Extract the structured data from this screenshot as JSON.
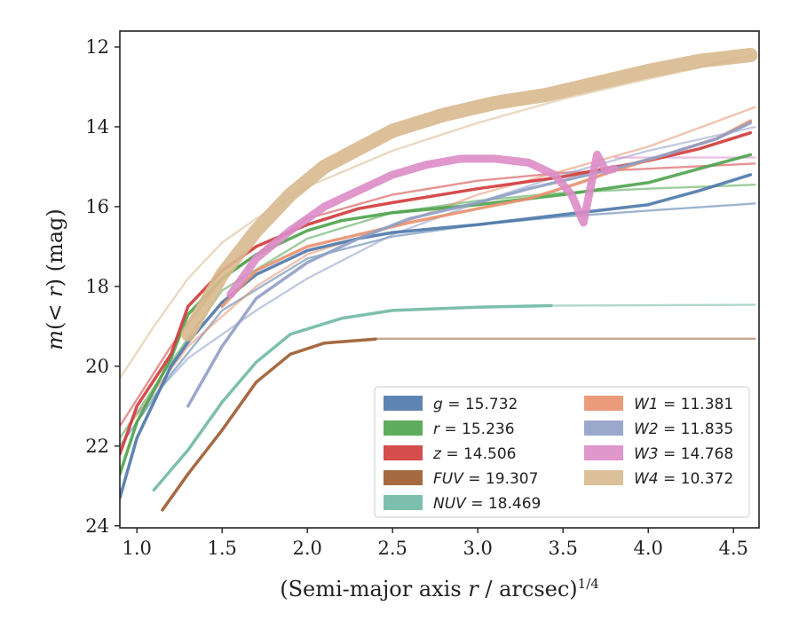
{
  "chart_data": {
    "type": "line",
    "xlabel": "(Semi-major axis r / arcsec)^1/4",
    "ylabel": "m(< r) (mag)",
    "xlim": [
      0.9,
      4.65
    ],
    "ylim": [
      24.05,
      11.6
    ],
    "y_inverted": true,
    "xticks": [
      "1.0",
      "1.5",
      "2.0",
      "2.5",
      "3.0",
      "3.5",
      "4.0",
      "4.5"
    ],
    "yticks": [
      "12",
      "14",
      "16",
      "18",
      "20",
      "22",
      "24"
    ],
    "legend_position": "lower-right",
    "series": [
      {
        "name": "g = 15.732",
        "label": "g",
        "value": "15.732",
        "color": "#4c78a8",
        "data": [
          [
            0.9,
            23.3
          ],
          [
            1.0,
            21.8
          ],
          [
            1.2,
            20.0
          ],
          [
            1.3,
            19.4
          ],
          [
            1.5,
            18.4
          ],
          [
            1.7,
            17.7
          ],
          [
            2.0,
            17.1
          ],
          [
            2.3,
            16.8
          ],
          [
            2.5,
            16.65
          ],
          [
            3.0,
            16.45
          ],
          [
            3.5,
            16.2
          ],
          [
            4.0,
            15.95
          ],
          [
            4.3,
            15.6
          ],
          [
            4.6,
            15.2
          ]
        ],
        "model": [
          [
            0.9,
            22.0
          ],
          [
            1.2,
            20.2
          ],
          [
            1.5,
            18.6
          ],
          [
            2.0,
            17.3
          ],
          [
            2.5,
            16.75
          ],
          [
            3.0,
            16.45
          ],
          [
            3.5,
            16.25
          ],
          [
            4.0,
            16.1
          ],
          [
            4.63,
            15.92
          ]
        ]
      },
      {
        "name": "r = 15.236",
        "label": "r",
        "value": "15.236",
        "color": "#4ba34b",
        "data": [
          [
            0.9,
            22.7
          ],
          [
            1.0,
            21.4
          ],
          [
            1.2,
            19.8
          ],
          [
            1.3,
            18.7
          ],
          [
            1.5,
            17.8
          ],
          [
            1.7,
            17.2
          ],
          [
            2.0,
            16.6
          ],
          [
            2.2,
            16.35
          ],
          [
            2.5,
            16.15
          ],
          [
            3.0,
            15.95
          ],
          [
            3.5,
            15.7
          ],
          [
            4.0,
            15.4
          ],
          [
            4.3,
            15.05
          ],
          [
            4.6,
            14.7
          ]
        ],
        "model": [
          [
            0.9,
            21.8
          ],
          [
            1.2,
            19.9
          ],
          [
            1.5,
            18.1
          ],
          [
            2.0,
            16.8
          ],
          [
            2.5,
            16.15
          ],
          [
            3.0,
            15.85
          ],
          [
            3.5,
            15.65
          ],
          [
            4.0,
            15.55
          ],
          [
            4.63,
            15.45
          ]
        ]
      },
      {
        "name": "z = 14.506",
        "label": "z",
        "value": "14.506",
        "color": "#d03a3a",
        "data": [
          [
            0.9,
            22.2
          ],
          [
            1.0,
            21.0
          ],
          [
            1.2,
            19.7
          ],
          [
            1.3,
            18.5
          ],
          [
            1.5,
            17.6
          ],
          [
            1.7,
            17.0
          ],
          [
            2.0,
            16.45
          ],
          [
            2.3,
            16.05
          ],
          [
            2.5,
            15.9
          ],
          [
            3.0,
            15.55
          ],
          [
            3.5,
            15.25
          ],
          [
            4.0,
            14.85
          ],
          [
            4.3,
            14.55
          ],
          [
            4.6,
            14.15
          ]
        ],
        "model": [
          [
            0.9,
            21.5
          ],
          [
            1.2,
            19.5
          ],
          [
            1.5,
            17.8
          ],
          [
            2.0,
            16.3
          ],
          [
            2.5,
            15.7
          ],
          [
            3.0,
            15.35
          ],
          [
            3.5,
            15.15
          ],
          [
            4.0,
            15.05
          ],
          [
            4.63,
            14.92
          ]
        ]
      },
      {
        "name": "FUV = 19.307",
        "label": "FUV",
        "value": "19.307",
        "color": "#9c5a2e",
        "data": [
          [
            1.15,
            23.6
          ],
          [
            1.3,
            22.7
          ],
          [
            1.5,
            21.6
          ],
          [
            1.7,
            20.4
          ],
          [
            1.9,
            19.7
          ],
          [
            2.1,
            19.42
          ],
          [
            2.4,
            19.32
          ]
        ],
        "model": [
          [
            2.4,
            19.31
          ],
          [
            4.63,
            19.31
          ]
        ]
      },
      {
        "name": "NUV = 18.469",
        "label": "NUV",
        "value": "18.469",
        "color": "#6fb8a3",
        "data": [
          [
            1.1,
            23.1
          ],
          [
            1.3,
            22.1
          ],
          [
            1.5,
            20.9
          ],
          [
            1.7,
            19.9
          ],
          [
            1.9,
            19.2
          ],
          [
            2.2,
            18.8
          ],
          [
            2.5,
            18.6
          ],
          [
            3.0,
            18.52
          ],
          [
            3.43,
            18.48
          ]
        ],
        "model": [
          [
            3.43,
            18.48
          ],
          [
            4.63,
            18.46
          ]
        ]
      },
      {
        "name": "W1 = 11.381",
        "label": "W1",
        "value": "11.381",
        "color": "#e8906e",
        "data": [
          [
            1.5,
            18.5
          ],
          [
            1.7,
            17.6
          ],
          [
            2.0,
            17.0
          ],
          [
            2.3,
            16.7
          ],
          [
            2.6,
            16.4
          ],
          [
            3.0,
            16.05
          ],
          [
            3.3,
            15.8
          ],
          [
            3.6,
            15.4
          ],
          [
            3.8,
            15.1
          ],
          [
            4.1,
            14.7
          ],
          [
            4.4,
            14.3
          ],
          [
            4.6,
            13.85
          ]
        ],
        "model": [
          [
            0.95,
            21.5
          ],
          [
            1.3,
            19.5
          ],
          [
            1.7,
            18.0
          ],
          [
            2.0,
            17.2
          ],
          [
            2.5,
            16.5
          ],
          [
            3.0,
            15.7
          ],
          [
            3.5,
            15.1
          ],
          [
            4.0,
            14.5
          ],
          [
            4.63,
            13.5
          ]
        ]
      },
      {
        "name": "W2 = 11.835",
        "label": "W2",
        "value": "11.835",
        "color": "#8f9fc7",
        "data": [
          [
            1.3,
            21.0
          ],
          [
            1.5,
            19.5
          ],
          [
            1.7,
            18.3
          ],
          [
            2.0,
            17.4
          ],
          [
            2.3,
            16.8
          ],
          [
            2.6,
            16.3
          ],
          [
            3.0,
            15.9
          ],
          [
            3.3,
            15.55
          ],
          [
            3.6,
            15.25
          ],
          [
            3.8,
            15.05
          ],
          [
            4.1,
            14.7
          ],
          [
            4.4,
            14.3
          ],
          [
            4.6,
            13.9
          ]
        ],
        "model": [
          [
            1.0,
            21.2
          ],
          [
            1.3,
            19.8
          ],
          [
            1.7,
            18.6
          ],
          [
            2.0,
            17.8
          ],
          [
            2.5,
            16.7
          ],
          [
            3.0,
            15.9
          ],
          [
            3.5,
            15.2
          ],
          [
            4.0,
            14.6
          ],
          [
            4.63,
            14.0
          ]
        ]
      },
      {
        "name": "W3 = 14.768",
        "label": "W3",
        "value": "14.768",
        "color": "#dc8cc6",
        "data": [
          [
            1.55,
            18.2
          ],
          [
            1.7,
            17.3
          ],
          [
            1.9,
            16.6
          ],
          [
            2.1,
            16.0
          ],
          [
            2.3,
            15.6
          ],
          [
            2.5,
            15.2
          ],
          [
            2.7,
            14.95
          ],
          [
            2.9,
            14.8
          ],
          [
            3.1,
            14.8
          ],
          [
            3.3,
            14.9
          ],
          [
            3.45,
            15.2
          ],
          [
            3.55,
            15.7
          ],
          [
            3.62,
            16.4
          ],
          [
            3.7,
            14.7
          ],
          [
            3.75,
            15.1
          ],
          [
            3.8,
            15.05
          ]
        ],
        "model": [
          [
            3.8,
            14.77
          ],
          [
            4.63,
            14.77
          ]
        ]
      },
      {
        "name": "W4 = 10.372",
        "label": "W4",
        "value": "10.372",
        "color": "#d8b98e",
        "data": [
          [
            1.3,
            19.2
          ],
          [
            1.5,
            17.7
          ],
          [
            1.7,
            16.6
          ],
          [
            1.9,
            15.7
          ],
          [
            2.1,
            15.0
          ],
          [
            2.3,
            14.55
          ],
          [
            2.5,
            14.1
          ],
          [
            2.8,
            13.7
          ],
          [
            3.1,
            13.4
          ],
          [
            3.4,
            13.2
          ],
          [
            3.7,
            12.9
          ],
          [
            4.0,
            12.6
          ],
          [
            4.3,
            12.35
          ],
          [
            4.6,
            12.2
          ]
        ],
        "model": [
          [
            0.9,
            20.3
          ],
          [
            1.1,
            19.0
          ],
          [
            1.3,
            17.8
          ],
          [
            1.5,
            16.9
          ],
          [
            1.7,
            16.3
          ],
          [
            2.0,
            15.5
          ],
          [
            2.5,
            14.6
          ],
          [
            3.0,
            13.9
          ],
          [
            3.5,
            13.3
          ],
          [
            4.0,
            12.8
          ],
          [
            4.63,
            12.2
          ]
        ]
      }
    ]
  }
}
